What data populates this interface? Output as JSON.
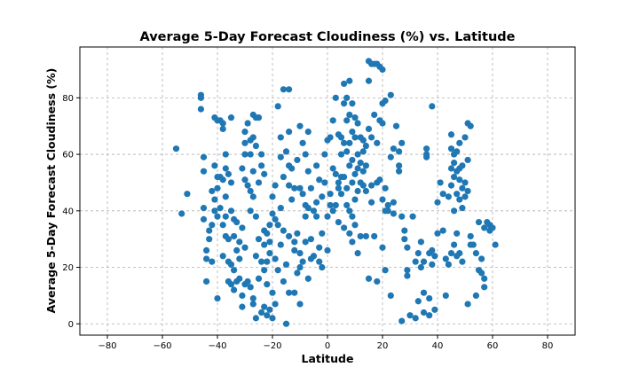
{
  "chart_data": {
    "type": "scatter",
    "title": "Average 5-Day Forecast Cloudiness (%) vs. Latitude",
    "xlabel": "Latitude",
    "ylabel": "Average 5-Day Forecast Cloudiness (%)",
    "xlim": [
      -90,
      90
    ],
    "ylim": [
      -4,
      98
    ],
    "xticks": [
      -80,
      -60,
      -40,
      -20,
      0,
      20,
      40,
      60,
      80
    ],
    "yticks": [
      0,
      20,
      40,
      60,
      80
    ],
    "grid": true,
    "legend": "none",
    "marker_color": "#1f77b4",
    "points": [
      [
        -55,
        62
      ],
      [
        -53,
        39
      ],
      [
        -51,
        46
      ],
      [
        -46,
        81
      ],
      [
        -46,
        80
      ],
      [
        -46,
        76
      ],
      [
        -45,
        59
      ],
      [
        -45,
        54
      ],
      [
        -45,
        41
      ],
      [
        -45,
        37
      ],
      [
        -44,
        26
      ],
      [
        -44,
        15
      ],
      [
        -44,
        23
      ],
      [
        -43,
        33
      ],
      [
        -43,
        30
      ],
      [
        -42,
        22
      ],
      [
        -42,
        35
      ],
      [
        -42,
        47
      ],
      [
        -41,
        73
      ],
      [
        -41,
        56
      ],
      [
        -41,
        44
      ],
      [
        -41,
        40
      ],
      [
        -40,
        72
      ],
      [
        -40,
        52
      ],
      [
        -40,
        48
      ],
      [
        -40,
        38
      ],
      [
        -40,
        9
      ],
      [
        -39,
        72
      ],
      [
        -39,
        52
      ],
      [
        -39,
        41
      ],
      [
        -38,
        71
      ],
      [
        -38,
        69
      ],
      [
        -38,
        51
      ],
      [
        -38,
        35
      ],
      [
        -38,
        24
      ],
      [
        -37,
        60
      ],
      [
        -37,
        55
      ],
      [
        -37,
        45
      ],
      [
        -37,
        38
      ],
      [
        -37,
        31
      ],
      [
        -36,
        53
      ],
      [
        -36,
        30
      ],
      [
        -36,
        22
      ],
      [
        -36,
        15
      ],
      [
        -35,
        73
      ],
      [
        -35,
        50
      ],
      [
        -35,
        40
      ],
      [
        -35,
        21
      ],
      [
        -35,
        14
      ],
      [
        -34,
        37
      ],
      [
        -34,
        31
      ],
      [
        -34,
        19
      ],
      [
        -34,
        12
      ],
      [
        -33,
        36
      ],
      [
        -33,
        26
      ],
      [
        -33,
        15
      ],
      [
        -32,
        29
      ],
      [
        -32,
        23
      ],
      [
        -32,
        16
      ],
      [
        -31,
        55
      ],
      [
        -31,
        34
      ],
      [
        -31,
        10
      ],
      [
        -31,
        6
      ],
      [
        -30,
        68
      ],
      [
        -30,
        64
      ],
      [
        -30,
        60
      ],
      [
        -30,
        51
      ],
      [
        -30,
        27
      ],
      [
        -30,
        14
      ],
      [
        -29,
        71
      ],
      [
        -29,
        49
      ],
      [
        -29,
        15
      ],
      [
        -28,
        65
      ],
      [
        -28,
        60
      ],
      [
        -28,
        47
      ],
      [
        -28,
        40
      ],
      [
        -28,
        13
      ],
      [
        -27,
        74
      ],
      [
        -27,
        66
      ],
      [
        -27,
        54
      ],
      [
        -27,
        45
      ],
      [
        -27,
        9
      ],
      [
        -27,
        7
      ],
      [
        -26,
        73
      ],
      [
        -26,
        63
      ],
      [
        -26,
        38
      ],
      [
        -26,
        24
      ],
      [
        -26,
        2
      ],
      [
        -25,
        73
      ],
      [
        -25,
        50
      ],
      [
        -25,
        30
      ],
      [
        -25,
        16
      ],
      [
        -24,
        60
      ],
      [
        -24,
        56
      ],
      [
        -24,
        22
      ],
      [
        -24,
        4
      ],
      [
        -23,
        53
      ],
      [
        -23,
        33
      ],
      [
        -23,
        28
      ],
      [
        -23,
        19
      ],
      [
        -23,
        6
      ],
      [
        -22,
        32
      ],
      [
        -22,
        22
      ],
      [
        -22,
        14
      ],
      [
        -22,
        3
      ],
      [
        -21,
        35
      ],
      [
        -21,
        29
      ],
      [
        -21,
        25
      ],
      [
        -21,
        5
      ],
      [
        -20,
        45
      ],
      [
        -20,
        39
      ],
      [
        -20,
        11
      ],
      [
        -20,
        2
      ],
      [
        -19,
        49
      ],
      [
        -19,
        37
      ],
      [
        -19,
        23
      ],
      [
        -19,
        7
      ],
      [
        -18,
        77
      ],
      [
        -18,
        35
      ],
      [
        -18,
        19
      ],
      [
        -17,
        66
      ],
      [
        -17,
        59
      ],
      [
        -17,
        41
      ],
      [
        -17,
        28
      ],
      [
        -16,
        83
      ],
      [
        -16,
        52
      ],
      [
        -16,
        33
      ],
      [
        -16,
        15
      ],
      [
        -15,
        61
      ],
      [
        -15,
        21
      ],
      [
        -15,
        0
      ],
      [
        -14,
        83
      ],
      [
        -14,
        68
      ],
      [
        -14,
        56
      ],
      [
        -14,
        49
      ],
      [
        -14,
        31
      ],
      [
        -14,
        11
      ],
      [
        -13,
        55
      ],
      [
        -13,
        44
      ],
      [
        -12,
        48
      ],
      [
        -12,
        29
      ],
      [
        -12,
        26
      ],
      [
        -12,
        11
      ],
      [
        -11,
        58
      ],
      [
        -11,
        32
      ],
      [
        -11,
        18
      ],
      [
        -10,
        70
      ],
      [
        -10,
        48
      ],
      [
        -10,
        25
      ],
      [
        -10,
        20
      ],
      [
        -10,
        7
      ],
      [
        -9,
        64
      ],
      [
        -9,
        46
      ],
      [
        -9,
        22
      ],
      [
        -8,
        60
      ],
      [
        -8,
        42
      ],
      [
        -8,
        38
      ],
      [
        -8,
        29
      ],
      [
        -7,
        68
      ],
      [
        -7,
        54
      ],
      [
        -7,
        41
      ],
      [
        -7,
        16
      ],
      [
        -6,
        48
      ],
      [
        -6,
        30
      ],
      [
        -6,
        23
      ],
      [
        -5,
        40
      ],
      [
        -5,
        24
      ],
      [
        -4,
        56
      ],
      [
        -4,
        43
      ],
      [
        -4,
        38
      ],
      [
        -3,
        51
      ],
      [
        -3,
        27
      ],
      [
        -3,
        22
      ],
      [
        -2,
        45
      ],
      [
        -2,
        32
      ],
      [
        -2,
        20
      ],
      [
        -1,
        60
      ],
      [
        -1,
        50
      ],
      [
        0,
        65
      ],
      [
        0,
        38
      ],
      [
        0,
        26
      ],
      [
        1,
        66
      ],
      [
        1,
        46
      ],
      [
        1,
        42
      ],
      [
        2,
        72
      ],
      [
        2,
        55
      ],
      [
        2,
        40
      ],
      [
        3,
        80
      ],
      [
        3,
        53
      ],
      [
        3,
        42
      ],
      [
        4,
        67
      ],
      [
        4,
        50
      ],
      [
        4,
        48
      ],
      [
        4,
        36
      ],
      [
        5,
        66
      ],
      [
        5,
        60
      ],
      [
        5,
        52
      ],
      [
        5,
        46
      ],
      [
        6,
        85
      ],
      [
        6,
        78
      ],
      [
        6,
        64
      ],
      [
        6,
        52
      ],
      [
        6,
        34
      ],
      [
        7,
        80
      ],
      [
        7,
        72
      ],
      [
        7,
        61
      ],
      [
        7,
        48
      ],
      [
        7,
        42
      ],
      [
        8,
        86
      ],
      [
        8,
        74
      ],
      [
        8,
        64
      ],
      [
        8,
        56
      ],
      [
        8,
        40
      ],
      [
        8,
        32
      ],
      [
        9,
        78
      ],
      [
        9,
        68
      ],
      [
        9,
        58
      ],
      [
        9,
        50
      ],
      [
        9,
        38
      ],
      [
        9,
        29
      ],
      [
        10,
        73
      ],
      [
        10,
        66
      ],
      [
        10,
        53
      ],
      [
        10,
        44
      ],
      [
        10,
        35
      ],
      [
        11,
        71
      ],
      [
        11,
        60
      ],
      [
        11,
        55
      ],
      [
        11,
        47
      ],
      [
        11,
        25
      ],
      [
        12,
        66
      ],
      [
        12,
        57
      ],
      [
        12,
        50
      ],
      [
        12,
        31
      ],
      [
        13,
        65
      ],
      [
        13,
        61
      ],
      [
        13,
        54
      ],
      [
        13,
        49
      ],
      [
        14,
        63
      ],
      [
        14,
        56
      ],
      [
        14,
        47
      ],
      [
        14,
        31
      ],
      [
        15,
        93
      ],
      [
        15,
        86
      ],
      [
        15,
        69
      ],
      [
        15,
        16
      ],
      [
        16,
        92
      ],
      [
        16,
        66
      ],
      [
        16,
        49
      ],
      [
        16,
        43
      ],
      [
        17,
        92
      ],
      [
        17,
        74
      ],
      [
        17,
        31
      ],
      [
        18,
        92
      ],
      [
        18,
        64
      ],
      [
        18,
        50
      ],
      [
        18,
        15
      ],
      [
        19,
        91
      ],
      [
        19,
        72
      ],
      [
        19,
        51
      ],
      [
        20,
        90
      ],
      [
        20,
        78
      ],
      [
        20,
        71
      ],
      [
        20,
        44
      ],
      [
        20,
        27
      ],
      [
        21,
        79
      ],
      [
        21,
        48
      ],
      [
        21,
        40
      ],
      [
        21,
        19
      ],
      [
        22,
        42
      ],
      [
        22,
        40
      ],
      [
        23,
        81
      ],
      [
        23,
        59
      ],
      [
        23,
        10
      ],
      [
        24,
        62
      ],
      [
        24,
        43
      ],
      [
        24,
        39
      ],
      [
        25,
        70
      ],
      [
        26,
        61
      ],
      [
        26,
        56
      ],
      [
        26,
        54
      ],
      [
        27,
        64
      ],
      [
        27,
        38
      ],
      [
        27,
        1
      ],
      [
        28,
        33
      ],
      [
        28,
        30
      ],
      [
        29,
        27
      ],
      [
        29,
        19
      ],
      [
        29,
        17
      ],
      [
        30,
        3
      ],
      [
        31,
        38
      ],
      [
        32,
        2
      ],
      [
        32,
        22
      ],
      [
        33,
        25
      ],
      [
        33,
        8
      ],
      [
        34,
        29
      ],
      [
        34,
        20
      ],
      [
        35,
        22
      ],
      [
        35,
        11
      ],
      [
        35,
        4
      ],
      [
        36,
        60
      ],
      [
        36,
        59
      ],
      [
        36,
        62
      ],
      [
        37,
        25
      ],
      [
        37,
        9
      ],
      [
        37,
        3
      ],
      [
        38,
        77
      ],
      [
        38,
        21
      ],
      [
        38,
        26
      ],
      [
        39,
        24
      ],
      [
        39,
        5
      ],
      [
        40,
        43
      ],
      [
        40,
        32
      ],
      [
        41,
        50
      ],
      [
        42,
        46
      ],
      [
        42,
        33
      ],
      [
        43,
        23
      ],
      [
        43,
        10
      ],
      [
        44,
        45
      ],
      [
        44,
        21
      ],
      [
        45,
        67
      ],
      [
        45,
        62
      ],
      [
        45,
        55
      ],
      [
        45,
        49
      ],
      [
        45,
        25
      ],
      [
        46,
        60
      ],
      [
        46,
        57
      ],
      [
        46,
        52
      ],
      [
        46,
        40
      ],
      [
        46,
        28
      ],
      [
        47,
        61
      ],
      [
        47,
        54
      ],
      [
        47,
        46
      ],
      [
        47,
        32
      ],
      [
        47,
        24
      ],
      [
        48,
        64
      ],
      [
        48,
        55
      ],
      [
        48,
        51
      ],
      [
        48,
        44
      ],
      [
        48,
        25
      ],
      [
        49,
        56
      ],
      [
        49,
        48
      ],
      [
        49,
        41
      ],
      [
        49,
        22
      ],
      [
        50,
        66
      ],
      [
        50,
        50
      ],
      [
        50,
        45
      ],
      [
        51,
        71
      ],
      [
        51,
        58
      ],
      [
        51,
        47
      ],
      [
        51,
        7
      ],
      [
        52,
        70
      ],
      [
        52,
        31
      ],
      [
        52,
        28
      ],
      [
        53,
        28
      ],
      [
        54,
        25
      ],
      [
        54,
        10
      ],
      [
        55,
        36
      ],
      [
        55,
        19
      ],
      [
        56,
        18
      ],
      [
        56,
        23
      ],
      [
        57,
        34
      ],
      [
        57,
        16
      ],
      [
        57,
        13
      ],
      [
        58,
        36
      ],
      [
        59,
        33
      ],
      [
        59,
        35
      ],
      [
        60,
        34
      ],
      [
        61,
        28
      ]
    ]
  }
}
